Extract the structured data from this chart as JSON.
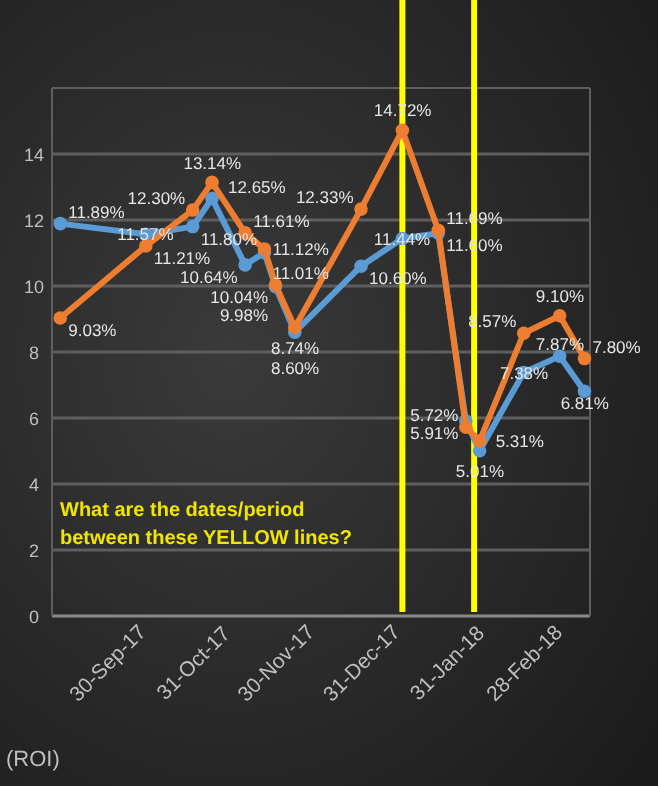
{
  "chart_data": {
    "type": "line",
    "x": [
      "2017-09-11",
      "2017-10-12",
      "2017-10-29",
      "2017-11-05",
      "2017-11-17",
      "2017-11-24",
      "2017-11-28",
      "2017-12-05",
      "2017-12-29",
      "2018-01-13",
      "2018-01-26",
      "2018-02-05",
      "2018-02-10",
      "2018-02-26",
      "2018-03-11",
      "2018-03-20"
    ],
    "series": [
      {
        "color": "#5b9bd5",
        "values": [
          11.89,
          11.57,
          11.8,
          12.65,
          10.64,
          11.01,
          9.98,
          8.6,
          10.6,
          11.44,
          11.6,
          5.91,
          5.01,
          7.38,
          7.87,
          6.81
        ],
        "value_labels": [
          "11.89%",
          "11.57%",
          "11.80%",
          "12.65%",
          "10.64%",
          "11.01%",
          "9.98%",
          "8.60%",
          "10.60%",
          "11.44%",
          "11.60%",
          "5.91%",
          "5.01%",
          "7.38%",
          "7.87%",
          "6.81%"
        ]
      },
      {
        "color": "#ed7d31",
        "values": [
          9.03,
          11.21,
          12.3,
          13.14,
          11.61,
          11.12,
          10.04,
          8.74,
          12.33,
          14.72,
          11.69,
          5.72,
          5.31,
          8.57,
          9.1,
          7.8
        ],
        "value_labels": [
          "9.03%",
          "11.21%",
          "12.30%",
          "13.14%",
          "11.61%",
          "11.12%",
          "10.04%",
          "8.74%",
          "12.33%",
          "14.72%",
          "11.69%",
          "5.72%",
          "5.31%",
          "8.57%",
          "9.10%",
          "7.80%"
        ]
      }
    ],
    "xlim": [
      "2017-09-08",
      "2018-03-22"
    ],
    "xticks": [
      {
        "value": "2017-09-30",
        "label": "30-Sep-17"
      },
      {
        "value": "2017-10-31",
        "label": "31-Oct-17"
      },
      {
        "value": "2017-11-30",
        "label": "30-Nov-17"
      },
      {
        "value": "2017-12-31",
        "label": "31-Dec-17"
      },
      {
        "value": "2018-01-31",
        "label": "31-Jan-18"
      },
      {
        "value": "2018-02-28",
        "label": "28-Feb-18"
      }
    ],
    "ylim": [
      0,
      16
    ],
    "yticks": [
      0,
      2,
      4,
      6,
      8,
      10,
      12,
      14
    ],
    "grid": "y",
    "marker": "circle",
    "line_style": "solid",
    "ref_lines": [
      {
        "axis": "x",
        "value": "2018-01-13",
        "color": "#ffff00"
      },
      {
        "axis": "x",
        "value": "2018-02-08",
        "color": "#ffff00"
      }
    ],
    "annotations": [
      "What are the dates/period between these YELLOW lines?",
      "(ROI)"
    ]
  }
}
